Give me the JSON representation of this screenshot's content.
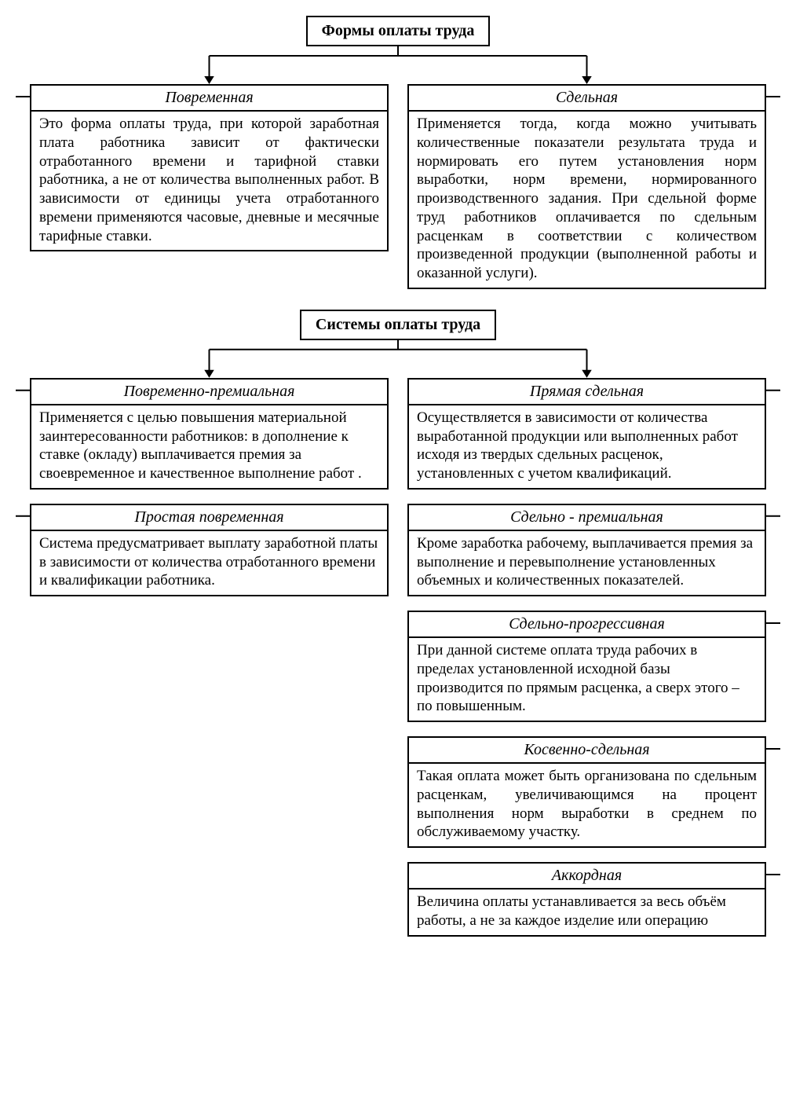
{
  "diagram": {
    "type": "flowchart",
    "background_color": "#ffffff",
    "border_color": "#000000",
    "border_width": 2,
    "font_family": "Times New Roman",
    "title_fontsize": 20,
    "body_fontsize": 19,
    "columns_gap": 24,
    "node_tick_len": 18,
    "connector_color": "#000000",
    "arrow_head_size": 10,
    "headers": {
      "forms": "Формы оплаты труда",
      "systems": "Системы оплаты труда"
    },
    "forms": {
      "time_based": {
        "title": "Повременная",
        "body": "Это форма оплаты труда, при которой заработная плата работника зависит от фактически отработанного времени и тарифной ставки работника, а не от количества выполненных работ. В зависимости от единицы учета отработанного времени применяются часовые, дневные и месячные тарифные ставки.",
        "text_align": "justify"
      },
      "piece_rate": {
        "title": "Сдельная",
        "body": "Применяется тогда, когда можно учитывать количественные показатели результата труда и нормировать его путем установления норм выработки, норм времени, нормированного производственного задания. При сдельной форме труд работников оплачивается по сдельным расценкам в соответствии с количеством произведенной продукции (выполненной работы и оказанной услуги).",
        "text_align": "justify"
      }
    },
    "systems": {
      "left": [
        {
          "key": "time_bonus",
          "title": "Повременно-премиальная",
          "body": "Применяется с целью повышения материальной заинтересованности работников: в дополнение к ставке (окладу) выплачивается премия за своевременное и качественное выполнение работ .",
          "text_align": "left"
        },
        {
          "key": "simple_time",
          "title": "Простая повременная",
          "body": "Система предусматривает выплату заработной платы в зависимости от количества отработанного времени и квалификации работника.",
          "text_align": "left"
        }
      ],
      "right": [
        {
          "key": "direct_piece",
          "title": "Прямая сдельная",
          "body": "Осуществляется в зависимости от количества выработанной продукции или выполненных работ исходя из твердых сдельных расценок, установленных с учетом квалификаций.",
          "text_align": "left"
        },
        {
          "key": "piece_bonus",
          "title": "Сдельно - премиальная",
          "body": "Кроме заработка рабочему, выплачивается премия за выполнение и перевыполнение установленных объемных и количественных показателей.",
          "text_align": "left"
        },
        {
          "key": "piece_progressive",
          "title": "Сдельно-прогрессивная",
          "body": "При данной системе оплата труда рабочих в пределах установленной исходной базы производится по прямым расценка, а сверх этого – по повышенным.",
          "text_align": "left"
        },
        {
          "key": "indirect_piece",
          "title": "Косвенно-сдельная",
          "body": "Такая оплата может быть организована по сдельным расценкам, увеличивающимся на процент выполнения норм выработки в среднем по обслуживаемому участку.",
          "text_align": "justify"
        },
        {
          "key": "lump_sum",
          "title": "Аккордная",
          "body": "Величина оплаты устанавливается за весь объём работы, а не за каждое изделие или операцию",
          "text_align": "left"
        }
      ]
    }
  }
}
